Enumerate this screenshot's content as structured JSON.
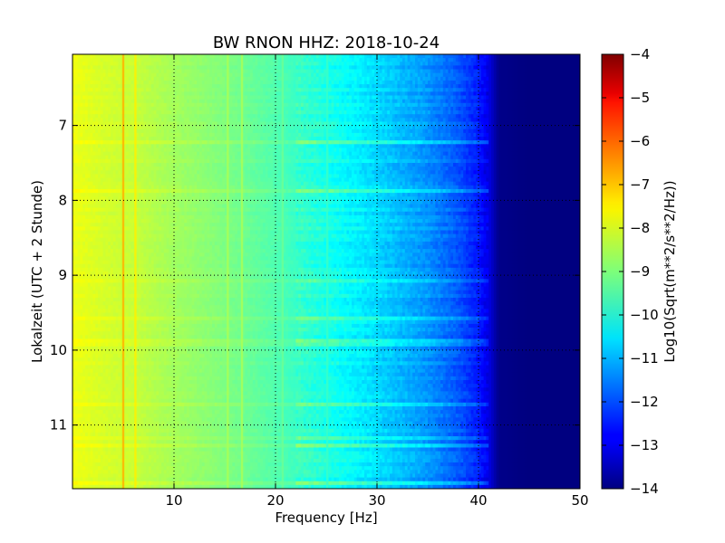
{
  "chart_data": {
    "type": "heatmap",
    "title": "BW RNON HHZ: 2018-10-24",
    "xlabel": "Frequency [Hz]",
    "ylabel": "Lokalzeit (UTC + 2 Stunde)",
    "colorbar_label": "Log10(Sqrt(m**2/s**2/Hz))",
    "xlim": [
      0,
      50
    ],
    "ylim": [
      11.85,
      6.05
    ],
    "y_axis_inverted": true,
    "x_ticks": [
      10,
      20,
      30,
      40,
      50
    ],
    "x_tick_labels": [
      "10",
      "20",
      "30",
      "40",
      "50"
    ],
    "y_ticks": [
      7,
      8,
      9,
      10,
      11
    ],
    "y_tick_labels": [
      "7",
      "8",
      "9",
      "10",
      "11"
    ],
    "colorbar_range": [
      -14,
      -4
    ],
    "colorbar_ticks": [
      -4,
      -5,
      -6,
      -7,
      -8,
      -9,
      -10,
      -11,
      -12,
      -13,
      -14
    ],
    "colorbar_tick_labels": [
      "−4",
      "−5",
      "−6",
      "−7",
      "−8",
      "−9",
      "−10",
      "−11",
      "−12",
      "−13",
      "−14"
    ],
    "colormap": "jet",
    "grid": true,
    "spectral_profile": {
      "frequency_hz": [
        0,
        1,
        3,
        6,
        10,
        15,
        20,
        25,
        30,
        35,
        38,
        40,
        41,
        42,
        45,
        50
      ],
      "log10_amplitude": [
        -7.9,
        -8.0,
        -8.15,
        -8.3,
        -8.65,
        -9.0,
        -9.45,
        -10.0,
        -10.6,
        -11.3,
        -11.9,
        -12.5,
        -13.0,
        -13.9,
        -14.0,
        -14.0
      ]
    },
    "spectral_lines": [
      {
        "frequency_hz": 5.0,
        "log10_amplitude": -7.0
      },
      {
        "frequency_hz": 6.2,
        "log10_amplitude": -7.6
      },
      {
        "frequency_hz": 15.3,
        "log10_amplitude": -8.6
      },
      {
        "frequency_hz": 16.7,
        "log10_amplitude": -8.6
      },
      {
        "frequency_hz": 20.7,
        "log10_amplitude": -9.2
      },
      {
        "frequency_hz": 25.1,
        "log10_amplitude": -9.7
      }
    ]
  }
}
